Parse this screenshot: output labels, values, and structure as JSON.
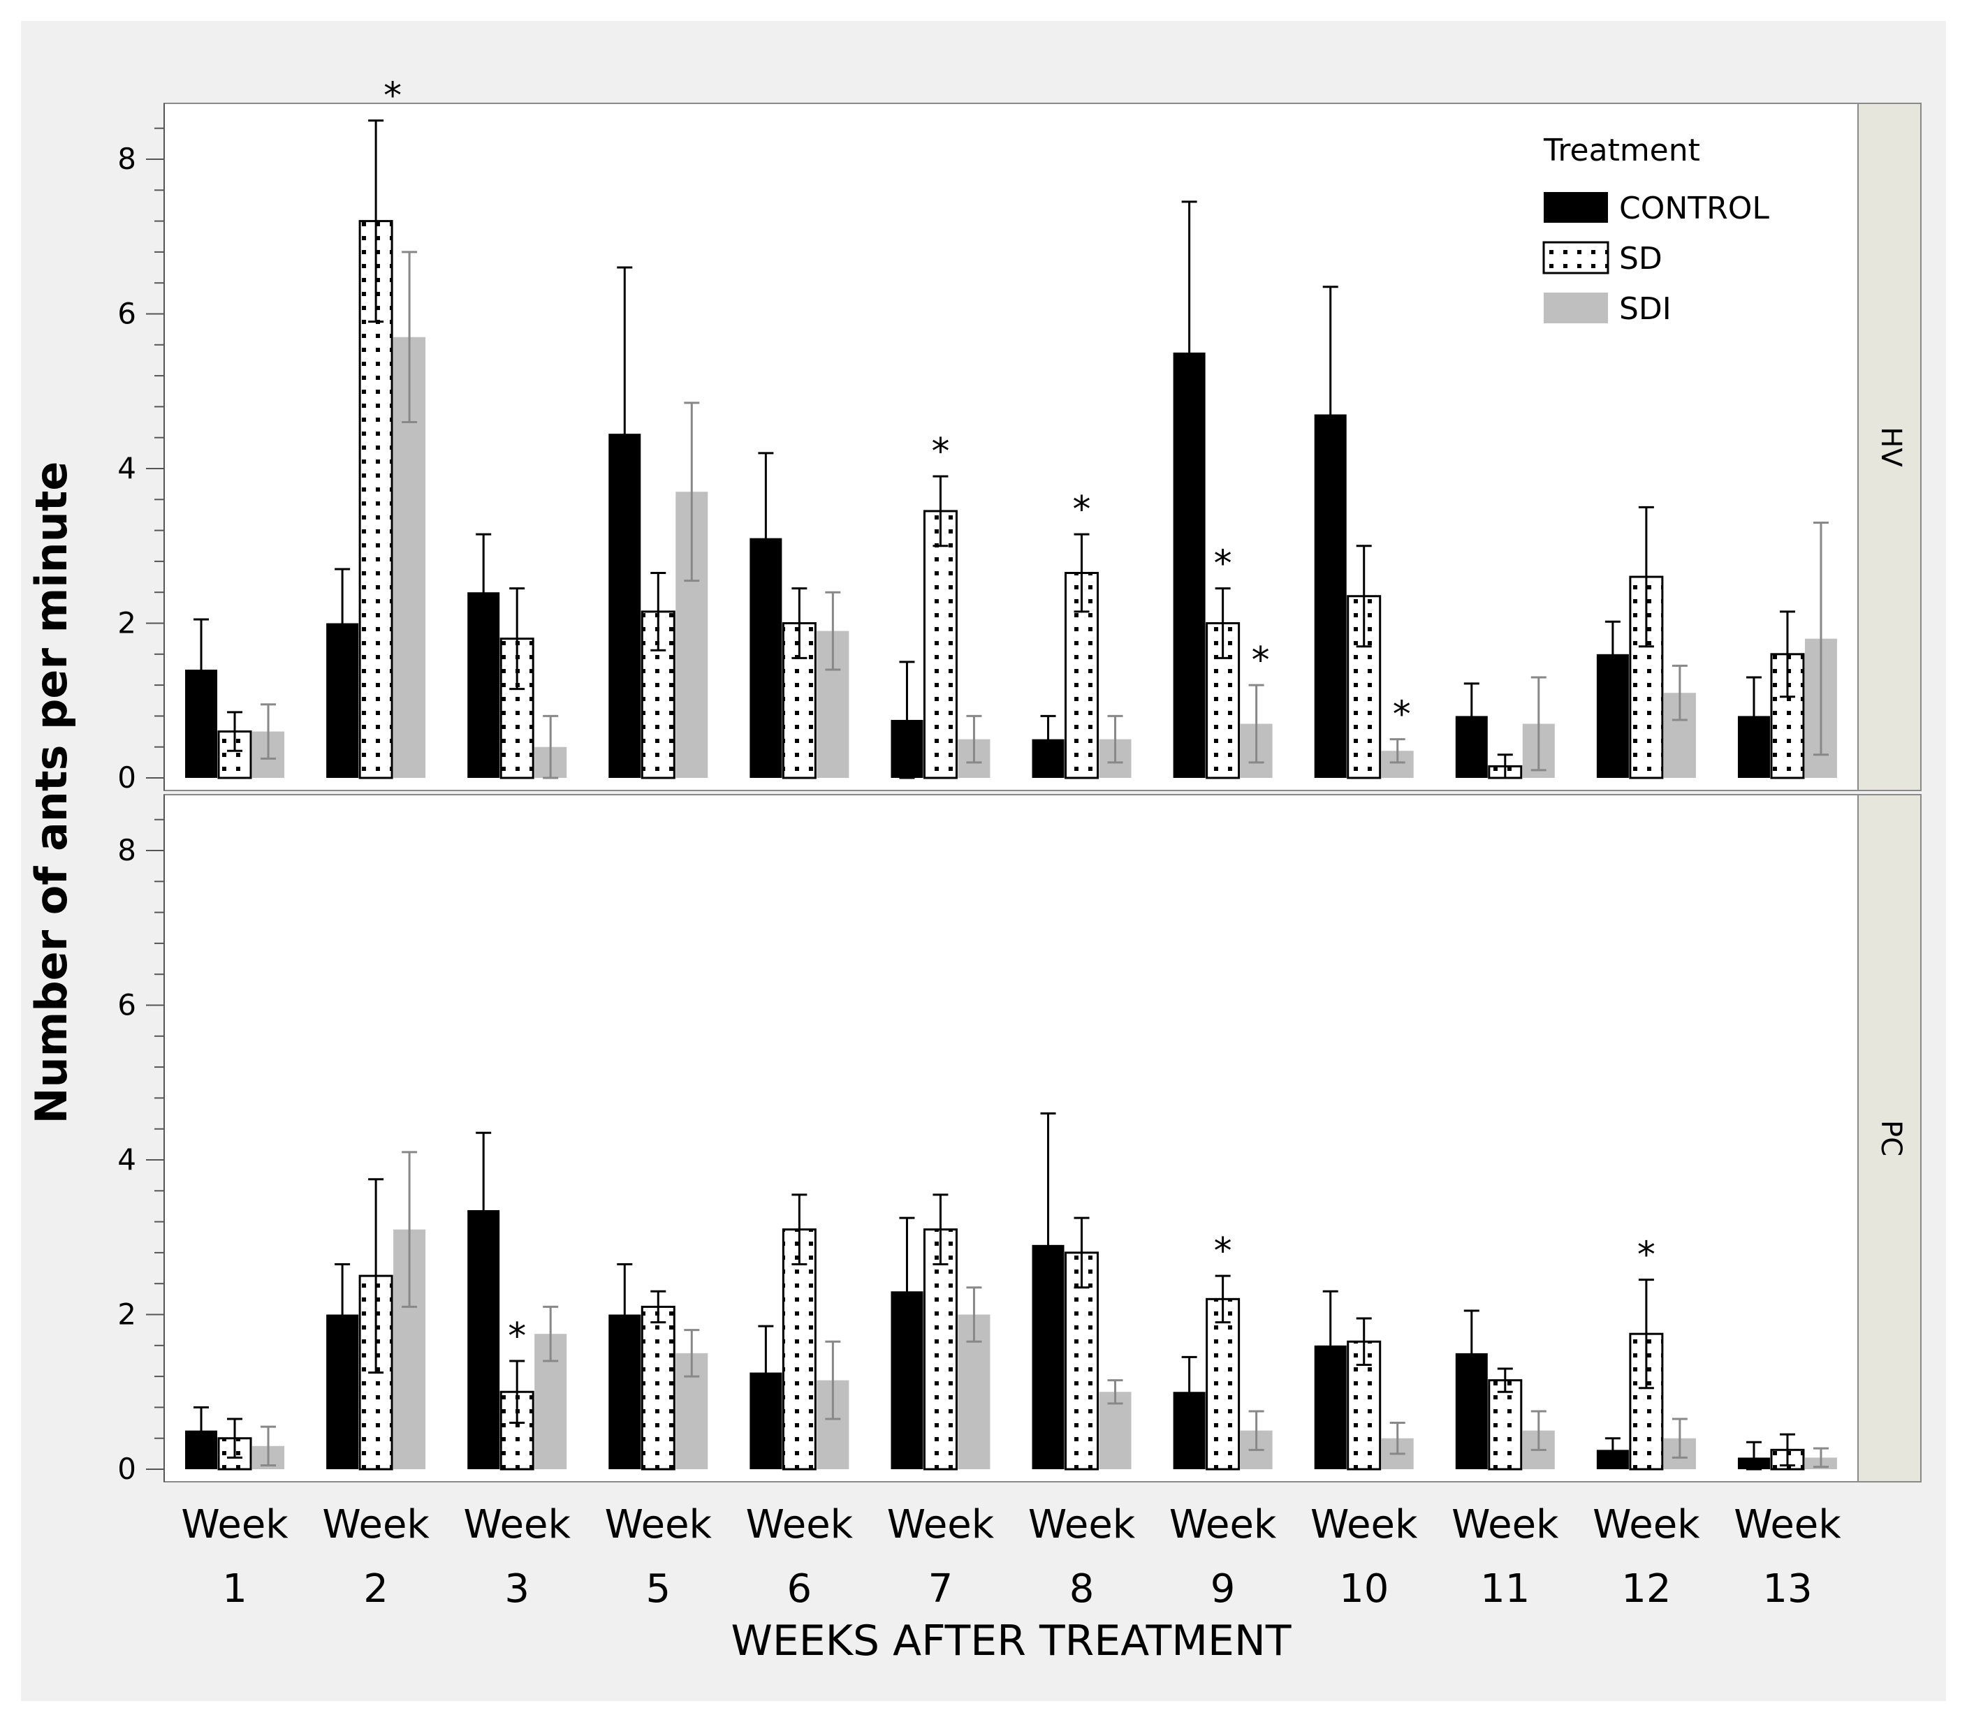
{
  "chart_data": {
    "type": "bar",
    "ylabel": "Number of ants per minute",
    "xlabel": "WEEKS AFTER TREATMENT",
    "ylim": [
      0,
      8.8
    ],
    "yticks": [
      0,
      2,
      4,
      6,
      8
    ],
    "categories": [
      [
        "Week",
        "1"
      ],
      [
        "Week",
        "2"
      ],
      [
        "Week",
        "3"
      ],
      [
        "Week",
        "5"
      ],
      [
        "Week",
        "6"
      ],
      [
        "Week",
        "7"
      ],
      [
        "Week",
        "8"
      ],
      [
        "Week",
        "9"
      ],
      [
        "Week",
        "10"
      ],
      [
        "Week",
        "11"
      ],
      [
        "Week",
        "12"
      ],
      [
        "Week",
        "13"
      ]
    ],
    "legend": {
      "title": "Treatment",
      "entries": [
        "CONTROL",
        "SD",
        "SDI"
      ],
      "colors": [
        "#000000",
        "#ffffff",
        "#bfbfbf"
      ]
    },
    "panels": [
      {
        "name": "HV",
        "series": [
          {
            "name": "CONTROL",
            "values": [
              1.4,
              2.0,
              2.4,
              4.45,
              3.1,
              0.75,
              0.5,
              5.5,
              4.7,
              0.8,
              1.6,
              0.8
            ],
            "errors": [
              0.65,
              0.7,
              0.75,
              2.15,
              1.1,
              0.75,
              0.3,
              1.95,
              1.65,
              0.42,
              0.42,
              0.5
            ]
          },
          {
            "name": "SD",
            "values": [
              0.6,
              7.2,
              1.8,
              2.15,
              2.0,
              3.45,
              2.65,
              2.0,
              2.35,
              0.15,
              2.6,
              1.6
            ],
            "errors": [
              0.25,
              1.3,
              0.65,
              0.5,
              0.45,
              0.45,
              0.5,
              0.45,
              0.65,
              0.15,
              0.9,
              0.55
            ]
          },
          {
            "name": "SDI",
            "values": [
              0.6,
              5.7,
              0.4,
              3.7,
              1.9,
              0.5,
              0.5,
              0.7,
              0.35,
              0.7,
              1.1,
              1.8
            ],
            "errors": [
              0.35,
              1.1,
              0.4,
              1.15,
              0.5,
              0.3,
              0.3,
              0.5,
              0.15,
              0.6,
              0.35,
              1.5
            ]
          }
        ],
        "significance": [
          {
            "week": "2",
            "series": "SD"
          },
          {
            "week": "7",
            "series": "SD"
          },
          {
            "week": "8",
            "series": "SD"
          },
          {
            "week": "9",
            "series": "SD"
          },
          {
            "week": "9",
            "series": "SDI"
          },
          {
            "week": "10",
            "series": "SDI"
          }
        ]
      },
      {
        "name": "PC",
        "series": [
          {
            "name": "CONTROL",
            "values": [
              0.5,
              2.0,
              3.35,
              2.0,
              1.25,
              2.3,
              2.9,
              1.0,
              1.6,
              1.5,
              0.25,
              0.15
            ],
            "errors": [
              0.3,
              0.65,
              1.0,
              0.65,
              0.6,
              0.95,
              1.7,
              0.45,
              0.7,
              0.55,
              0.15,
              0.2
            ]
          },
          {
            "name": "SD",
            "values": [
              0.4,
              2.5,
              1.0,
              2.1,
              3.1,
              3.1,
              2.8,
              2.2,
              1.65,
              1.15,
              1.75,
              0.25
            ],
            "errors": [
              0.25,
              1.25,
              0.4,
              0.2,
              0.45,
              0.45,
              0.45,
              0.3,
              0.3,
              0.15,
              0.7,
              0.2
            ]
          },
          {
            "name": "SDI",
            "values": [
              0.3,
              3.1,
              1.75,
              1.5,
              1.15,
              2.0,
              1.0,
              0.5,
              0.4,
              0.5,
              0.4,
              0.15
            ],
            "errors": [
              0.25,
              1.0,
              0.35,
              0.3,
              0.5,
              0.35,
              0.15,
              0.25,
              0.2,
              0.25,
              0.25,
              0.12
            ]
          }
        ],
        "significance": [
          {
            "week": "3",
            "series": "SD"
          },
          {
            "week": "9",
            "series": "SD"
          },
          {
            "week": "12",
            "series": "SD"
          }
        ]
      }
    ],
    "significance_marker": "*"
  }
}
